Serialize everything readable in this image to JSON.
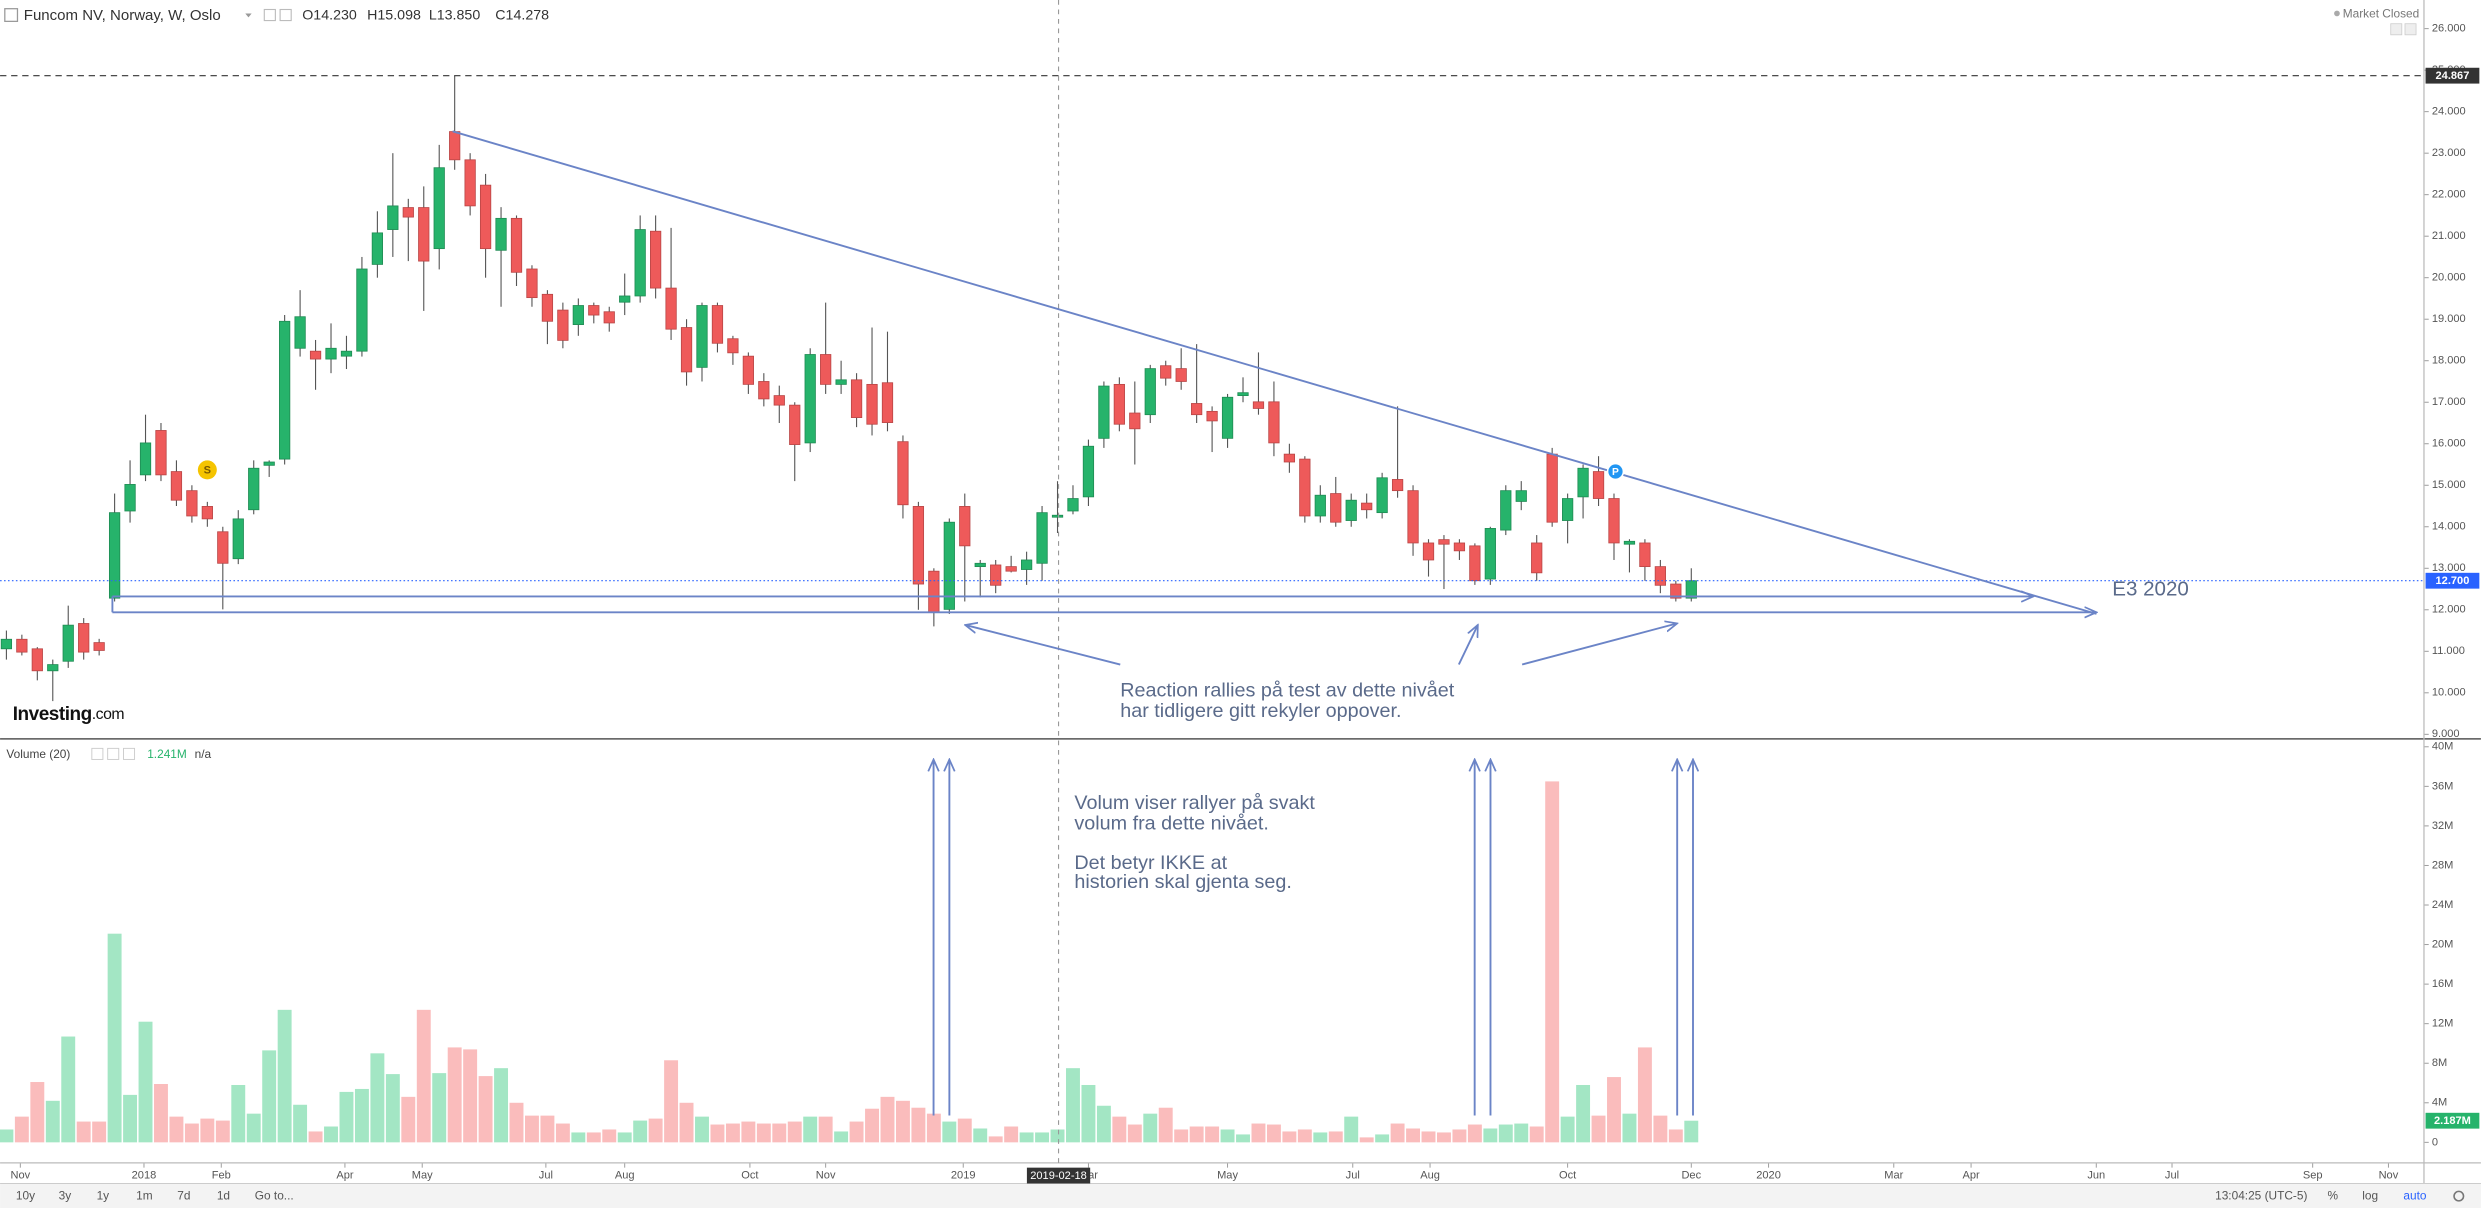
{
  "header": {
    "readout": [
      "O14.230",
      "H15.098",
      "L13.850",
      "C14.278"
    ],
    "status": "Market Closed"
  },
  "markers": [
    "S",
    "P"
  ],
  "crosshair_date": "2019-02-18",
  "logo": {
    "brand": "Investing",
    "suffix": ".com"
  },
  "volume_header": {
    "name": "Volume (20)",
    "value": "1.241M",
    "extra": "n/a"
  },
  "toolbar": {
    "ranges": [
      "10y",
      "3y",
      "1y",
      "1m",
      "7d",
      "1d"
    ],
    "goto": "Go to...",
    "clock": "13:04:25 (UTC-5)",
    "options": [
      "%",
      "log",
      "auto"
    ]
  },
  "chart_data": [
    {
      "type": "candlestick",
      "title": "Funcom NV, Norway, W, Oslo",
      "up_color": "#26b36b",
      "down_color": "#ee5a5a",
      "xlim": [
        -0.41,
        156.4
      ],
      "ylim": [
        8.89,
        26.69
      ],
      "yticks": [
        {
          "value": 9,
          "label": "9.000"
        },
        {
          "value": 10,
          "label": "10.000"
        },
        {
          "value": 11,
          "label": "11.000"
        },
        {
          "value": 12,
          "label": "12.000"
        },
        {
          "value": 13,
          "label": "13.000"
        },
        {
          "value": 14,
          "label": "14.000"
        },
        {
          "value": 15,
          "label": "15.000"
        },
        {
          "value": 16,
          "label": "16.000"
        },
        {
          "value": 17,
          "label": "17.000"
        },
        {
          "value": 18,
          "label": "18.000"
        },
        {
          "value": 19,
          "label": "19.000"
        },
        {
          "value": 20,
          "label": "20.000"
        },
        {
          "value": 21,
          "label": "21.000"
        },
        {
          "value": 22,
          "label": "22.000"
        },
        {
          "value": 23,
          "label": "23.000"
        },
        {
          "value": 24,
          "label": "24.000"
        },
        {
          "value": 25,
          "label": "25.000"
        },
        {
          "value": 26,
          "label": "26.000"
        }
      ],
      "price_lines": [
        {
          "value": 24.867,
          "label": "24.867",
          "color": "#333333",
          "style": "dashed"
        },
        {
          "value": 12.7,
          "label": "12.700",
          "color": "#2962ff",
          "style": "dotted"
        }
      ],
      "annotations": [
        "E3 2020",
        "Reaction rallies på test av dette nivået",
        "har tidligere gitt rekyler oppover."
      ],
      "x": [
        0,
        1,
        2,
        3,
        4,
        5,
        6,
        7,
        8,
        9,
        10,
        11,
        12,
        13,
        14,
        15,
        16,
        17,
        18,
        19,
        20,
        21,
        22,
        23,
        24,
        25,
        26,
        27,
        28,
        29,
        30,
        31,
        32,
        33,
        34,
        35,
        36,
        37,
        38,
        39,
        40,
        41,
        42,
        43,
        44,
        45,
        46,
        47,
        48,
        49,
        50,
        51,
        52,
        53,
        54,
        55,
        56,
        57,
        58,
        59,
        60,
        61,
        62,
        63,
        64,
        65,
        66,
        67,
        68,
        69,
        70,
        71,
        72,
        73,
        74,
        75,
        76,
        77,
        78,
        79,
        80,
        81,
        82,
        83,
        84,
        85,
        86,
        87,
        88,
        89,
        90,
        91,
        92,
        93,
        94,
        95,
        96,
        97,
        98,
        99,
        100,
        101,
        102,
        103,
        104,
        105,
        106,
        107,
        108,
        109
      ],
      "open": [
        11.06,
        11.29,
        11.06,
        10.53,
        10.76,
        11.67,
        11.21,
        12.28,
        14.38,
        15.25,
        16.32,
        15.33,
        14.87,
        14.49,
        13.88,
        13.23,
        14.41,
        15.48,
        15.63,
        18.3,
        18.23,
        18.04,
        18.11,
        18.23,
        20.32,
        21.16,
        21.69,
        21.69,
        20.7,
        23.52,
        22.84,
        22.23,
        20.66,
        21.43,
        20.21,
        19.6,
        19.22,
        18.87,
        19.33,
        19.18,
        19.41,
        19.56,
        21.12,
        19.75,
        18.8,
        17.84,
        19.33,
        18.53,
        18.11,
        17.5,
        17.16,
        16.93,
        16.02,
        18.15,
        17.43,
        17.54,
        17.43,
        17.47,
        16.05,
        14.49,
        12.93,
        12.01,
        14.49,
        13.04,
        13.08,
        13.04,
        12.97,
        13.12,
        14.23,
        14.38,
        14.72,
        16.13,
        17.43,
        16.74,
        16.7,
        17.88,
        17.81,
        16.97,
        16.78,
        16.13,
        17.16,
        17.01,
        17.01,
        15.75,
        15.63,
        14.26,
        14.8,
        14.15,
        14.57,
        14.34,
        15.14,
        14.87,
        13.61,
        13.69,
        13.61,
        13.54,
        12.74,
        13.92,
        14.61,
        13.61,
        15.75,
        14.15,
        14.72,
        15.33,
        14.68,
        13.58,
        13.61,
        13.04,
        12.62,
        12.28
      ],
      "high": [
        11.5,
        11.4,
        11.1,
        10.8,
        12.1,
        11.8,
        11.3,
        14.8,
        15.6,
        16.7,
        16.5,
        15.6,
        15.0,
        14.6,
        14.0,
        14.4,
        15.6,
        15.6,
        19.1,
        19.7,
        18.5,
        18.9,
        18.6,
        20.5,
        21.6,
        23.0,
        21.9,
        22.2,
        23.2,
        24.867,
        23.0,
        22.5,
        21.7,
        21.5,
        20.3,
        19.7,
        19.4,
        19.5,
        19.4,
        19.3,
        20.1,
        21.5,
        21.5,
        21.2,
        19.0,
        19.4,
        19.4,
        18.6,
        18.2,
        17.7,
        17.4,
        17.0,
        18.3,
        19.4,
        18.0,
        17.7,
        18.8,
        18.7,
        16.2,
        14.6,
        13.0,
        14.2,
        14.8,
        13.2,
        13.2,
        13.3,
        13.4,
        14.5,
        15.098,
        15.0,
        16.1,
        17.5,
        17.6,
        17.5,
        17.9,
        18.0,
        18.3,
        18.4,
        16.9,
        17.2,
        17.6,
        18.2,
        17.5,
        16.0,
        15.7,
        15.0,
        15.2,
        14.8,
        14.8,
        15.3,
        16.9,
        15.0,
        13.7,
        13.8,
        13.7,
        13.6,
        14.0,
        15.0,
        15.1,
        13.8,
        15.9,
        14.8,
        15.5,
        15.7,
        14.8,
        13.7,
        13.7,
        13.2,
        12.7,
        13.0
      ],
      "low": [
        10.8,
        10.9,
        10.3,
        9.8,
        10.6,
        10.8,
        10.9,
        12.2,
        14.1,
        15.1,
        15.1,
        14.5,
        14.1,
        14.0,
        12.01,
        13.1,
        14.3,
        15.2,
        15.5,
        18.1,
        17.3,
        17.7,
        17.8,
        18.1,
        20.0,
        20.5,
        20.4,
        19.2,
        20.2,
        22.6,
        21.5,
        20.0,
        19.3,
        19.8,
        19.3,
        18.4,
        18.3,
        18.6,
        18.9,
        18.7,
        19.1,
        19.4,
        19.5,
        18.5,
        17.4,
        17.5,
        18.2,
        17.9,
        17.2,
        16.9,
        16.5,
        15.1,
        15.8,
        17.2,
        17.2,
        16.4,
        16.2,
        16.3,
        14.2,
        12.0,
        11.6,
        11.9,
        12.2,
        12.3,
        12.4,
        12.9,
        12.6,
        12.7,
        13.85,
        14.3,
        14.5,
        15.9,
        16.3,
        15.5,
        16.5,
        17.4,
        17.3,
        16.5,
        15.8,
        15.9,
        17.0,
        16.7,
        15.7,
        15.3,
        14.1,
        14.1,
        14.0,
        14.0,
        14.2,
        14.2,
        14.7,
        13.3,
        12.8,
        12.5,
        13.2,
        12.6,
        12.6,
        13.8,
        14.4,
        12.7,
        14.0,
        13.6,
        14.2,
        14.5,
        13.2,
        12.9,
        12.7,
        12.4,
        12.2,
        12.2
      ],
      "close": [
        11.29,
        10.98,
        10.53,
        10.68,
        11.63,
        10.98,
        11.02,
        14.34,
        15.02,
        16.02,
        15.25,
        14.64,
        14.26,
        14.19,
        13.12,
        14.19,
        15.41,
        15.56,
        18.95,
        19.06,
        18.04,
        18.3,
        18.23,
        20.21,
        21.08,
        21.73,
        21.46,
        20.4,
        22.65,
        22.84,
        21.73,
        20.7,
        21.43,
        20.13,
        19.52,
        18.95,
        18.49,
        19.33,
        19.1,
        18.91,
        19.56,
        21.16,
        19.75,
        18.76,
        17.73,
        19.33,
        18.42,
        18.19,
        17.43,
        17.08,
        16.93,
        15.98,
        18.15,
        17.43,
        17.54,
        16.63,
        16.47,
        16.51,
        14.53,
        12.62,
        11.94,
        14.11,
        13.54,
        13.12,
        12.59,
        12.93,
        13.2,
        14.34,
        14.278,
        14.68,
        15.94,
        17.39,
        16.47,
        16.36,
        17.81,
        17.58,
        17.5,
        16.7,
        16.55,
        17.12,
        17.23,
        16.85,
        16.02,
        15.56,
        14.26,
        14.76,
        14.11,
        14.64,
        14.41,
        15.18,
        14.87,
        13.61,
        13.2,
        13.58,
        13.42,
        12.7,
        13.96,
        14.87,
        14.87,
        12.89,
        14.11,
        14.68,
        15.41,
        14.68,
        13.61,
        13.65,
        13.04,
        12.59,
        12.28,
        12.7
      ]
    },
    {
      "type": "bar",
      "up_color": "#a3e6c4",
      "down_color": "#fabcbc",
      "xlim": [
        -0.41,
        156.4
      ],
      "ylim": [
        -2080000,
        40640000
      ],
      "yticks": [
        0,
        {
          "value": 4000000,
          "label": "4M"
        },
        {
          "value": 8000000,
          "label": "8M"
        },
        {
          "value": 12000000,
          "label": "12M"
        },
        {
          "value": 16000000,
          "label": "16M"
        },
        {
          "value": 20000000,
          "label": "20M"
        },
        {
          "value": 24000000,
          "label": "24M"
        },
        {
          "value": 28000000,
          "label": "28M"
        },
        {
          "value": 32000000,
          "label": "32M"
        },
        {
          "value": 36000000,
          "label": "36M"
        },
        {
          "value": 40000000,
          "label": "40M"
        }
      ],
      "xticks": [
        {
          "value": 0.9,
          "label": "Nov"
        },
        {
          "value": 8.9,
          "label": "2018"
        },
        {
          "value": 13.9,
          "label": "Feb"
        },
        {
          "value": 21.9,
          "label": "Apr"
        },
        {
          "value": 26.9,
          "label": "May"
        },
        {
          "value": 34.9,
          "label": "Jul"
        },
        {
          "value": 40.0,
          "label": "Aug"
        },
        {
          "value": 48.1,
          "label": "Oct"
        },
        {
          "value": 53.0,
          "label": "Nov"
        },
        {
          "value": 61.9,
          "label": "2019"
        },
        {
          "value": 70.0,
          "label": "Mar"
        },
        {
          "value": 79.0,
          "label": "May"
        },
        {
          "value": 87.1,
          "label": "Jul"
        },
        {
          "value": 92.1,
          "label": "Aug"
        },
        {
          "value": 101.0,
          "label": "Oct"
        },
        {
          "value": 109.0,
          "label": "Dec"
        },
        {
          "value": 114.0,
          "label": "2020"
        },
        {
          "value": 122.1,
          "label": "Mar"
        },
        {
          "value": 127.1,
          "label": "Apr"
        },
        {
          "value": 135.2,
          "label": "Jun"
        },
        {
          "value": 140.1,
          "label": "Jul"
        },
        {
          "value": 149.2,
          "label": "Sep"
        },
        {
          "value": 154.1,
          "label": "Nov"
        }
      ],
      "price_lines": [
        {
          "value": 2187000,
          "label": "2.187M",
          "color": "#26b36b",
          "style": "none"
        }
      ],
      "annotations": [
        "Volum viser rallyer på svakt",
        "volum fra dette nivået.",
        "Det betyr IKKE at",
        "historien skal gjenta seg."
      ],
      "x": [
        0,
        1,
        2,
        3,
        4,
        5,
        6,
        7,
        8,
        9,
        10,
        11,
        12,
        13,
        14,
        15,
        16,
        17,
        18,
        19,
        20,
        21,
        22,
        23,
        24,
        25,
        26,
        27,
        28,
        29,
        30,
        31,
        32,
        33,
        34,
        35,
        36,
        37,
        38,
        39,
        40,
        41,
        42,
        43,
        44,
        45,
        46,
        47,
        48,
        49,
        50,
        51,
        52,
        53,
        54,
        55,
        56,
        57,
        58,
        59,
        60,
        61,
        62,
        63,
        64,
        65,
        66,
        67,
        68,
        69,
        70,
        71,
        72,
        73,
        74,
        75,
        76,
        77,
        78,
        79,
        80,
        81,
        82,
        83,
        84,
        85,
        86,
        87,
        88,
        89,
        90,
        91,
        92,
        93,
        94,
        95,
        96,
        97,
        98,
        99,
        100,
        101,
        102,
        103,
        104,
        105,
        106,
        107,
        108,
        109
      ],
      "values": [
        1300000,
        2600000,
        6100000,
        4200000,
        10700000,
        2100000,
        2100000,
        21100000,
        4800000,
        12200000,
        5900000,
        2600000,
        1900000,
        2400000,
        2200000,
        5800000,
        2900000,
        9300000,
        13400000,
        3800000,
        1100000,
        1600000,
        5100000,
        5400000,
        9000000,
        6900000,
        4600000,
        13400000,
        7000000,
        9600000,
        9400000,
        6700000,
        7500000,
        4000000,
        2700000,
        2700000,
        1900000,
        1000000,
        1000000,
        1300000,
        1000000,
        2200000,
        2400000,
        8300000,
        4000000,
        2600000,
        1800000,
        1900000,
        2100000,
        1900000,
        1900000,
        2100000,
        2600000,
        2600000,
        1100000,
        2100000,
        3400000,
        4600000,
        4200000,
        3500000,
        2900000,
        2100000,
        2400000,
        1400000,
        600000,
        1600000,
        1000000,
        1000000,
        1300000,
        7500000,
        5800000,
        3700000,
        2600000,
        1800000,
        2900000,
        3500000,
        1300000,
        1600000,
        1600000,
        1300000,
        800000,
        1900000,
        1800000,
        1100000,
        1300000,
        1000000,
        1100000,
        2600000,
        500000,
        800000,
        1900000,
        1400000,
        1100000,
        1000000,
        1300000,
        1800000,
        1400000,
        1800000,
        1900000,
        1600000,
        36500000,
        2600000,
        5800000,
        2700000,
        6600000,
        2900000,
        9600000,
        2700000,
        1300000,
        2187000
      ]
    }
  ]
}
